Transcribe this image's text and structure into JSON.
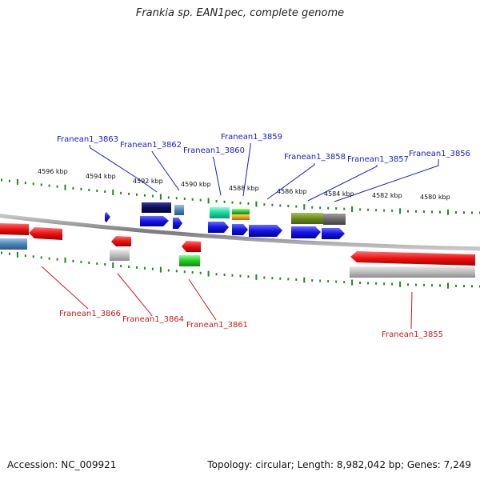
{
  "title": "Frankia sp. EAN1pec, complete genome",
  "footer": {
    "accession": "Accession: NC_009921",
    "topology": "Topology: circular; Length: 8,982,042 bp; Genes: 7,249"
  },
  "scale_labels": [
    "4596 kbp",
    "4594 kbp",
    "4592 kbp",
    "4590 kbp",
    "4588 kbp",
    "4586 kbp",
    "4584 kbp",
    "4582 kbp",
    "4580 kbp"
  ],
  "gene_labels_top": [
    "Franean1_3863",
    "Franean1_3862",
    "Franean1_3860",
    "Franean1_3859",
    "Franean1_3858",
    "Franean1_3857",
    "Franean1_3856"
  ],
  "gene_labels_bottom": [
    "Franean1_3866",
    "Franean1_3864",
    "Franean1_3861",
    "Franean1_3855"
  ],
  "colors": {
    "forward_gene": "#1414e6",
    "reverse_gene": "#e61414",
    "tick": "#1e8a1e",
    "top_label": "#1a1acc",
    "bottom_label": "#cc1a1a",
    "backbone": "#8c8c8c"
  }
}
